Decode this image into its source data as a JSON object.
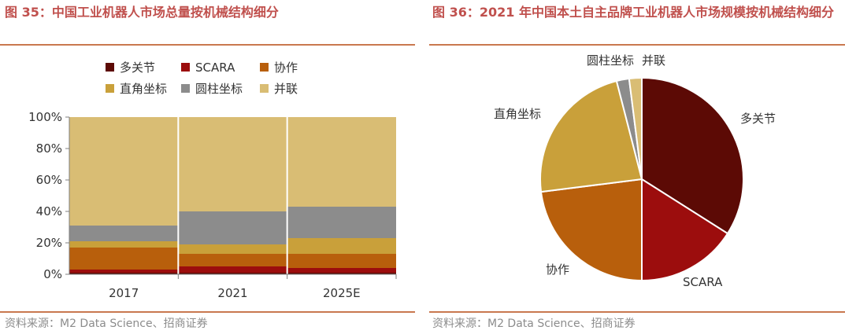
{
  "left": {
    "title": "图 35：中国工业机器人市场总量按机械结构细分",
    "source": "资料来源：M2 Data Science、招商证券"
  },
  "right": {
    "title": "图 36：2021 年中国本土自主品牌工业机器人市场规模按机械结构细分",
    "source": "资料来源：M2 Data Science、招商证券"
  },
  "colors": {
    "多关节": "#5c0a05",
    "SCARA": "#9c0d0d",
    "协作": "#b85f0c",
    "直角坐标": "#c9a03a",
    "圆柱坐标": "#8c8c8c",
    "并联": "#d9bd74",
    "title": "#c0504d",
    "rule": "#c9784f"
  },
  "chart_data": [
    {
      "type": "bar",
      "stacked": true,
      "categories": [
        "2017",
        "2021",
        "2025E"
      ],
      "series": [
        {
          "name": "多关节",
          "values": [
            1,
            1,
            1
          ]
        },
        {
          "name": "SCARA",
          "values": [
            2,
            4,
            3
          ]
        },
        {
          "name": "协作",
          "values": [
            14,
            8,
            9
          ]
        },
        {
          "name": "直角坐标",
          "values": [
            4,
            6,
            10
          ]
        },
        {
          "name": "圆柱坐标",
          "values": [
            10,
            21,
            20
          ]
        },
        {
          "name": "并联",
          "values": [
            69,
            60,
            57
          ]
        }
      ],
      "legend": [
        "多关节",
        "SCARA",
        "协作",
        "直角坐标",
        "圆柱坐标",
        "并联"
      ],
      "yticks": [
        "0%",
        "20%",
        "40%",
        "60%",
        "80%",
        "100%"
      ],
      "ylim": [
        0,
        100
      ],
      "xlabel": "",
      "ylabel": ""
    },
    {
      "type": "pie",
      "slices": [
        {
          "label": "多关节",
          "value": 34
        },
        {
          "label": "SCARA",
          "value": 16
        },
        {
          "label": "协作",
          "value": 23
        },
        {
          "label": "直角坐标",
          "value": 23
        },
        {
          "label": "圆柱坐标",
          "value": 2
        },
        {
          "label": "并联",
          "value": 2
        }
      ]
    }
  ]
}
